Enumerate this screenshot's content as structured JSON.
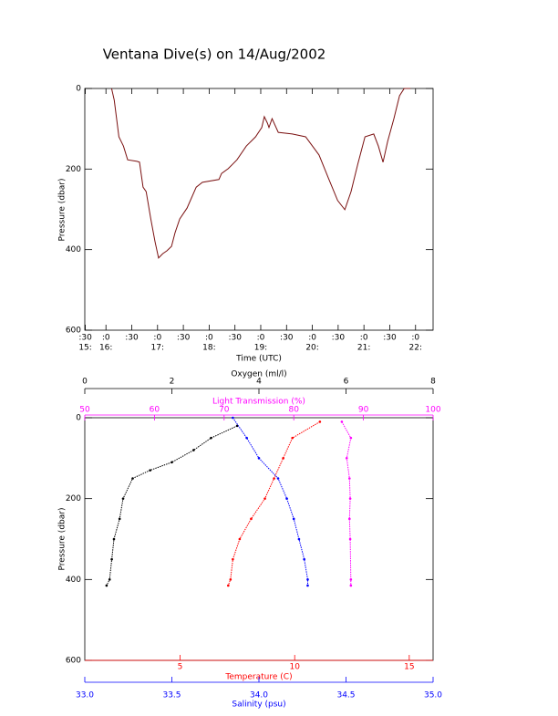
{
  "chart_data": [
    {
      "type": "line",
      "title": "Ventana Dive(s) on 14/Aug/2002",
      "x_label": "Time (UTC)",
      "y_label": "Pressure (dbar)",
      "color": "#7a1010",
      "x": [
        16.11,
        16.16,
        16.25,
        16.34,
        16.42,
        16.6,
        16.65,
        16.72,
        16.78,
        16.87,
        16.95,
        17.02,
        17.1,
        17.18,
        17.27,
        17.34,
        17.43,
        17.57,
        17.75,
        17.87,
        18.19,
        18.24,
        18.37,
        18.54,
        18.72,
        18.9,
        19.02,
        19.07,
        19.13,
        19.16,
        19.22,
        19.34,
        19.61,
        19.87,
        20.13,
        20.31,
        20.49,
        20.63,
        20.75,
        20.88,
        21.02,
        21.19,
        21.28,
        21.37,
        21.46,
        21.58,
        21.69,
        21.78,
        21.9
      ],
      "values": [
        0,
        29,
        120,
        143,
        177,
        181,
        183,
        245,
        256,
        324,
        380,
        421,
        410,
        403,
        392,
        358,
        324,
        297,
        245,
        233,
        226,
        211,
        199,
        177,
        143,
        120,
        97,
        70,
        86,
        97,
        75,
        109,
        113,
        120,
        165,
        222,
        278,
        301,
        256,
        188,
        120,
        113,
        143,
        183,
        131,
        75,
        18,
        0,
        0
      ],
      "xlim": [
        15.59,
        22.34
      ],
      "xticks": [
        {
          "value": 15.6,
          "label": ":30"
        },
        {
          "value": 16,
          "label": ":0"
        },
        {
          "value": 16.5,
          "label": ":30"
        },
        {
          "value": 17,
          "label": ":0"
        },
        {
          "value": 17.5,
          "label": ":30"
        },
        {
          "value": 18,
          "label": ":0"
        },
        {
          "value": 18.5,
          "label": ":30"
        },
        {
          "value": 19,
          "label": ":0"
        },
        {
          "value": 19.5,
          "label": ":30"
        },
        {
          "value": 20,
          "label": ":0"
        },
        {
          "value": 20.5,
          "label": ":30"
        },
        {
          "value": 21,
          "label": ":0"
        },
        {
          "value": 21.5,
          "label": ":30"
        },
        {
          "value": 22,
          "label": ":0"
        }
      ],
      "xtick_hours": [
        {
          "value": 15.6,
          "label": "15:"
        },
        {
          "value": 16,
          "label": "16:"
        },
        {
          "value": 17,
          "label": "17:"
        },
        {
          "value": 18,
          "label": "18:"
        },
        {
          "value": 19,
          "label": "19:"
        },
        {
          "value": 20,
          "label": "20:"
        },
        {
          "value": 21,
          "label": "21:"
        },
        {
          "value": 22,
          "label": "22:"
        }
      ],
      "ylim": [
        0,
        600
      ],
      "y_reversed": true,
      "yticks": [
        0,
        200,
        400,
        600
      ]
    },
    {
      "type": "scatter",
      "y_label": "Pressure (dbar)",
      "ylim": [
        0,
        600
      ],
      "y_reversed": true,
      "yticks": [
        0,
        200,
        400,
        600
      ],
      "x_axes": [
        {
          "label": "Oxygen (ml/l)",
          "color": "#000000",
          "side": "top",
          "lim": [
            0,
            8
          ],
          "ticks": [
            0,
            2,
            4,
            6,
            8
          ]
        },
        {
          "label": "Light Transmission (%)",
          "color": "#ff00ff",
          "side": "top",
          "lim": [
            50,
            100
          ],
          "ticks": [
            50,
            60,
            70,
            80,
            90,
            100
          ]
        },
        {
          "label": "Temperature (C)",
          "color": "#ff0000",
          "side": "bottom",
          "lim": [
            0.84,
            16.04
          ],
          "ticks": [
            5,
            10,
            15
          ]
        },
        {
          "label": "Salinity (psu)",
          "color": "#0000ff",
          "side": "bottom",
          "lim": [
            33,
            35
          ],
          "ticks": [
            {
              "value": 33,
              "label": "33.0"
            },
            {
              "value": 33.5,
              "label": "33.5"
            },
            {
              "value": 34,
              "label": "34.0"
            },
            {
              "value": 34.5,
              "label": "34.5"
            },
            {
              "value": 35,
              "label": "35.0"
            }
          ]
        }
      ],
      "series": [
        {
          "x_axis": 0,
          "color": "#000000",
          "x": [
            3.5,
            2.9,
            2.5,
            2.0,
            1.5,
            1.1,
            0.88,
            0.8,
            0.67,
            0.62,
            0.57,
            0.5
          ],
          "values": [
            20,
            50,
            80,
            110,
            130,
            150,
            200,
            250,
            300,
            350,
            400,
            415
          ]
        },
        {
          "x_axis": 1,
          "color": "#ff00ff",
          "x": [
            86.9,
            88.2,
            87.6,
            88.0,
            88.1,
            88.0,
            88.1,
            88.2,
            88.2
          ],
          "values": [
            10,
            50,
            100,
            150,
            200,
            250,
            300,
            400,
            415
          ]
        },
        {
          "x_axis": 2,
          "color": "#ff0000",
          "x": [
            11.1,
            9.9,
            9.5,
            9.1,
            8.7,
            8.1,
            7.6,
            7.3,
            7.2,
            7.1
          ],
          "values": [
            10,
            50,
            100,
            150,
            200,
            250,
            300,
            350,
            400,
            415
          ]
        },
        {
          "x_axis": 3,
          "color": "#0000ff",
          "x": [
            33.85,
            33.93,
            34.0,
            34.11,
            34.16,
            34.2,
            34.23,
            34.26,
            34.28,
            34.28
          ],
          "values": [
            0,
            50,
            100,
            150,
            200,
            250,
            300,
            350,
            400,
            415
          ]
        }
      ]
    }
  ]
}
